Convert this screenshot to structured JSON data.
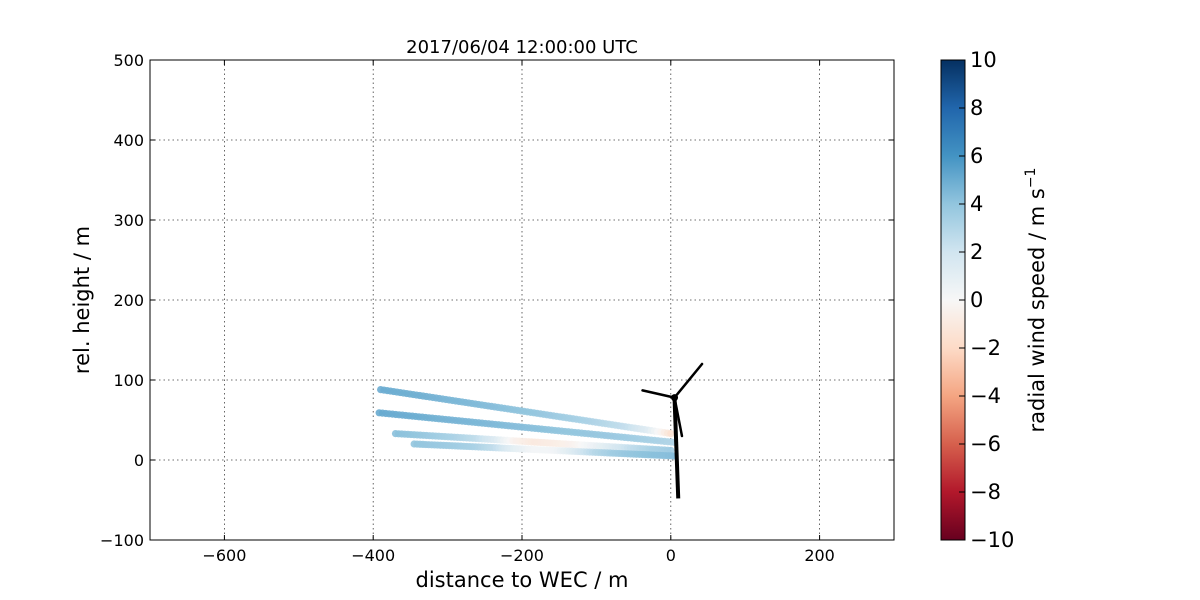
{
  "chart_data": {
    "type": "scatter",
    "title": "2017/06/04 12:00:00 UTC",
    "xlabel": "distance to WEC / m",
    "ylabel": "rel. height / m",
    "xlim": [
      -700,
      300
    ],
    "ylim": [
      -100,
      500
    ],
    "xticks": [
      -600,
      -400,
      -200,
      0,
      200
    ],
    "yticks": [
      -100,
      0,
      100,
      200,
      300,
      400,
      500
    ],
    "xtick_labels": [
      "−600",
      "−400",
      "−200",
      "0",
      "200"
    ],
    "ytick_labels": [
      "−100",
      "0",
      "100",
      "200",
      "300",
      "400",
      "500"
    ],
    "grid": true,
    "colorbar": {
      "label": "radial wind speed / m s",
      "label_superscript": "−1",
      "range": [
        -10,
        10
      ],
      "ticks": [
        10,
        8,
        6,
        4,
        2,
        0,
        -2,
        -4,
        -6,
        -8,
        -10
      ],
      "tick_labels": [
        "10",
        "8",
        "6",
        "4",
        "2",
        "0",
        "−2",
        "−4",
        "−6",
        "−8",
        "−10"
      ],
      "colormap": "RdBu"
    },
    "series": [
      {
        "x0": -390,
        "y0": 88,
        "x1": 0,
        "y1": 33,
        "speeds": [
          5.0,
          4.9,
          4.8,
          4.6,
          4.5,
          4.3,
          4.1,
          3.9,
          3.6,
          3.3,
          2.9,
          2.4,
          1.2,
          -1.5
        ]
      },
      {
        "x0": -392,
        "y0": 59,
        "x1": 5,
        "y1": 22,
        "speeds": [
          5.1,
          5.0,
          4.9,
          4.7,
          4.6,
          4.5,
          4.3,
          4.2,
          4.0,
          3.9,
          3.8,
          3.6,
          3.3,
          3.0
        ]
      },
      {
        "x0": -370,
        "y0": 33,
        "x1": 0,
        "y1": 12,
        "speeds": [
          4.2,
          4.0,
          3.6,
          3.2,
          2.6,
          1.5,
          -0.4,
          -1.0,
          -0.8,
          -0.4,
          0.5,
          1.5,
          2.5,
          3.2,
          3.6
        ]
      },
      {
        "x0": -345,
        "y0": 20,
        "x1": 5,
        "y1": 5,
        "speeds": [
          4.0,
          3.8,
          3.6,
          3.3,
          2.5,
          1.0,
          0.2,
          0.3,
          1.5,
          2.8,
          3.6,
          4.0,
          4.2,
          4.3
        ]
      }
    ],
    "turbine": {
      "tower_base": [
        10,
        -48
      ],
      "hub": [
        5,
        78
      ],
      "blade_tips": [
        [
          42,
          120
        ],
        [
          -38,
          87
        ],
        [
          15,
          30
        ]
      ]
    }
  }
}
